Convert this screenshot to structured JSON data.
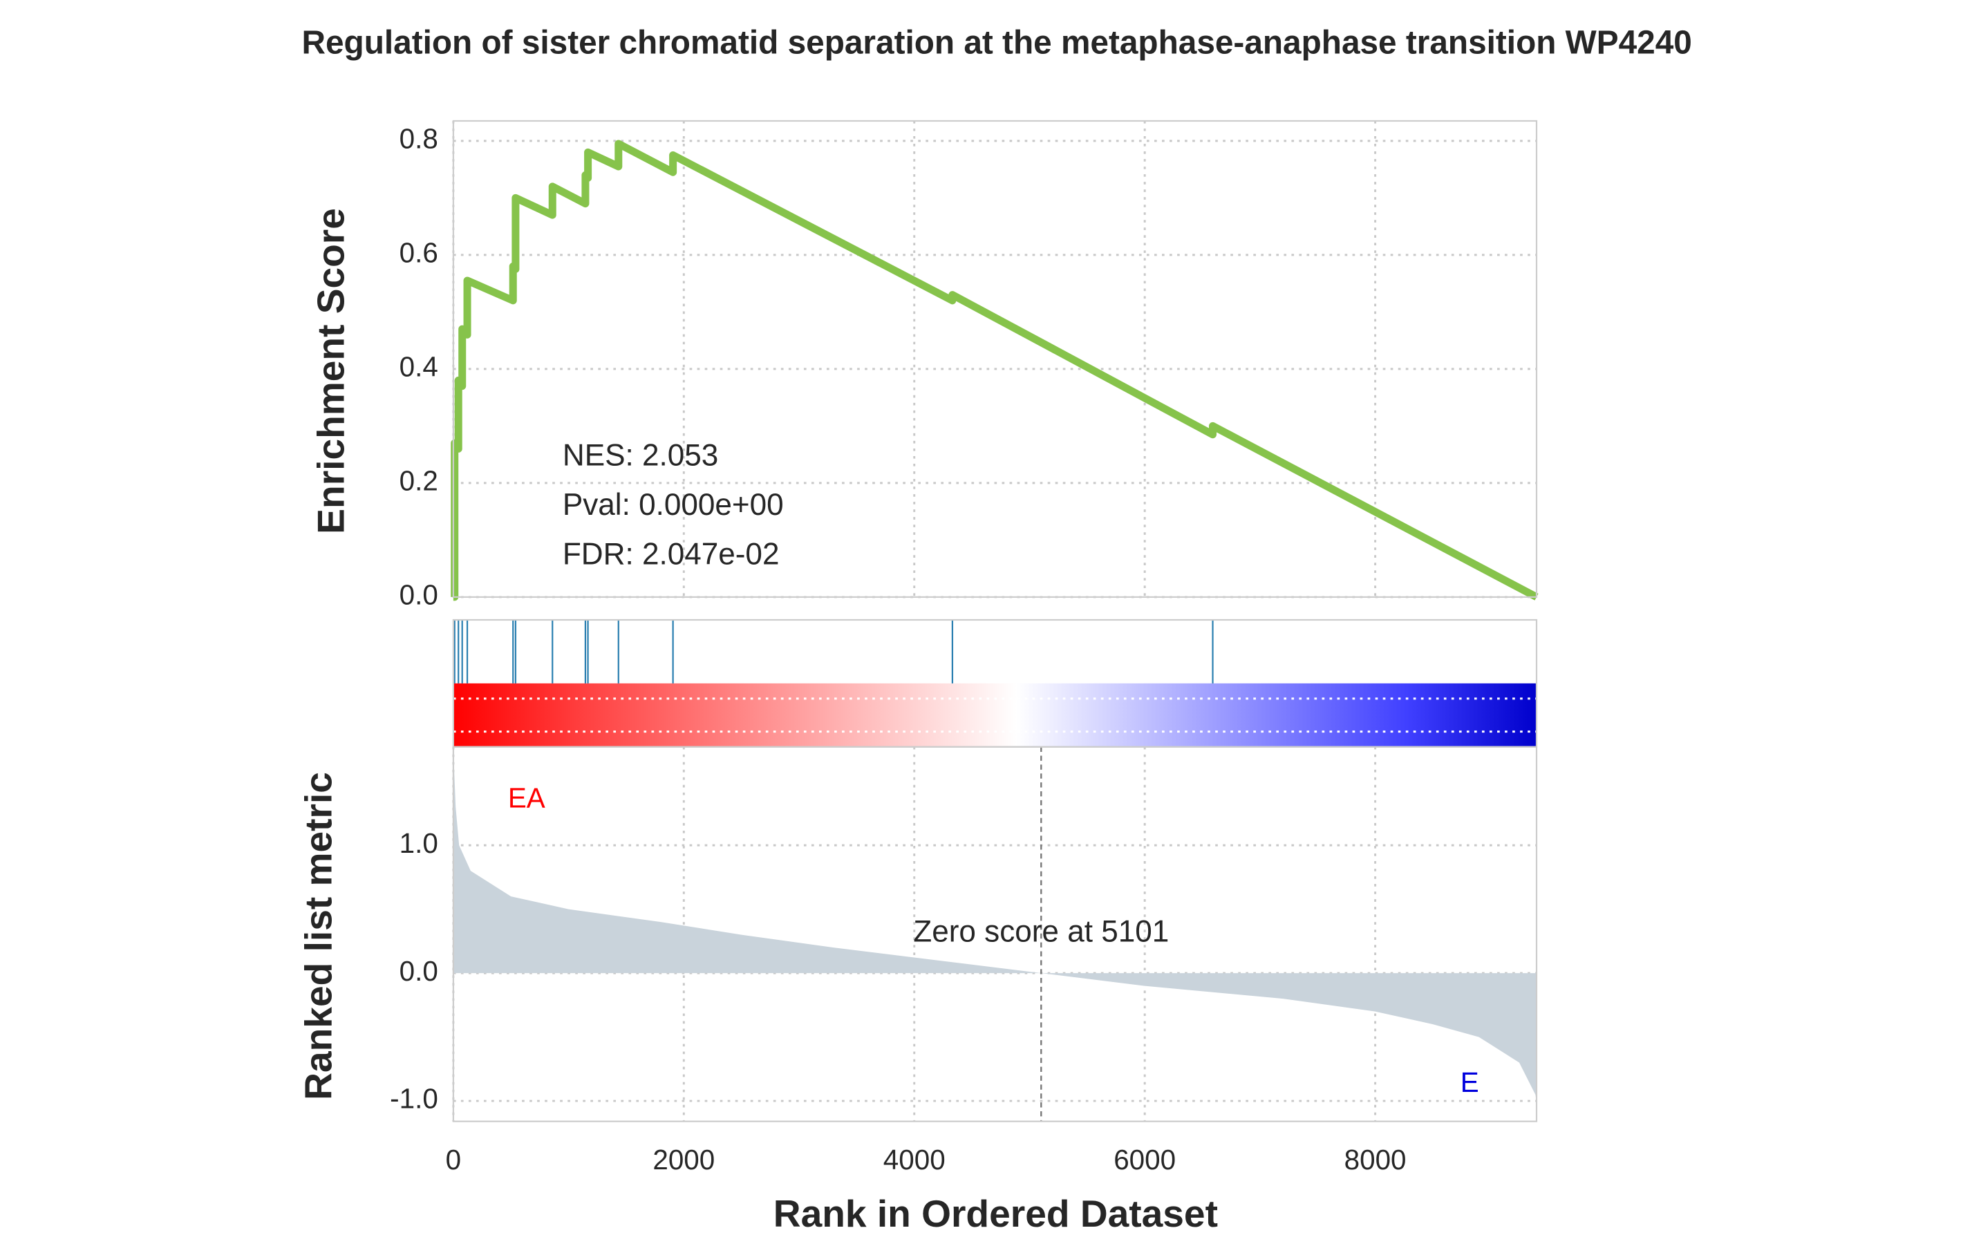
{
  "chart_data": [
    {
      "type": "line",
      "title": "Regulation of sister chromatid separation at the metaphase-anaphase transition WP4240",
      "y_label": "Enrichment Score",
      "color": "#86c34b",
      "x": [
        0,
        11,
        11,
        44,
        44,
        77,
        77,
        121,
        121,
        518,
        518,
        540,
        540,
        860,
        860,
        1146,
        1146,
        1168,
        1168,
        1433,
        1433,
        1906,
        1906,
        4331,
        4331,
        6590,
        6590,
        9400
      ],
      "values": [
        0,
        0,
        0.27,
        0.26,
        0.38,
        0.37,
        0.47,
        0.46,
        0.555,
        0.52,
        0.58,
        0.575,
        0.7,
        0.67,
        0.72,
        0.69,
        0.74,
        0.735,
        0.78,
        0.755,
        0.795,
        0.745,
        0.775,
        0.52,
        0.53,
        0.285,
        0.3,
        0
      ],
      "hits": [
        11,
        44,
        77,
        121,
        518,
        540,
        860,
        1146,
        1168,
        1433,
        1906,
        4331,
        6590
      ],
      "hit_color": "#2a7fb0",
      "ylim": [
        0,
        0.835
      ],
      "yticks": [
        {
          "value": 0,
          "label": "0.0"
        },
        {
          "value": 0.2,
          "label": "0.2"
        },
        {
          "value": 0.4,
          "label": "0.4"
        },
        {
          "value": 0.6,
          "label": "0.6"
        },
        {
          "value": 0.8,
          "label": "0.8"
        }
      ],
      "stats": [
        "NES: 2.053",
        "Pval: 0.000e+00",
        "FDR: 2.047e-02"
      ],
      "grid": true
    },
    {
      "type": "area",
      "y_label": "Ranked list metric",
      "x_label": "Rank in Ordered Dataset",
      "color": "#c9d3db",
      "x": [
        0,
        20,
        50,
        150,
        500,
        1000,
        1800,
        2500,
        3300,
        4200,
        5101,
        6000,
        7200,
        8000,
        8500,
        8900,
        9250,
        9390,
        9400
      ],
      "values": [
        1.75,
        1.3,
        1.0,
        0.8,
        0.6,
        0.5,
        0.4,
        0.3,
        0.2,
        0.1,
        0,
        -0.1,
        -0.2,
        -0.3,
        -0.4,
        -0.5,
        -0.7,
        -0.95,
        -1.0
      ],
      "xlim": [
        0,
        9400
      ],
      "xticks": [
        0,
        2000,
        4000,
        6000,
        8000
      ],
      "ylim": [
        -1.16,
        1.77
      ],
      "yticks": [
        {
          "value": -1,
          "label": "-1.0"
        },
        {
          "value": 0,
          "label": "0.0"
        },
        {
          "value": 1,
          "label": "1.0"
        }
      ],
      "zero_rank": 5101,
      "zero_label": "Zero score at 5101",
      "top_label": "EA",
      "top_color": "#ff0000",
      "bottom_label": "E",
      "bottom_color": "#0000dd",
      "grid": true
    }
  ]
}
